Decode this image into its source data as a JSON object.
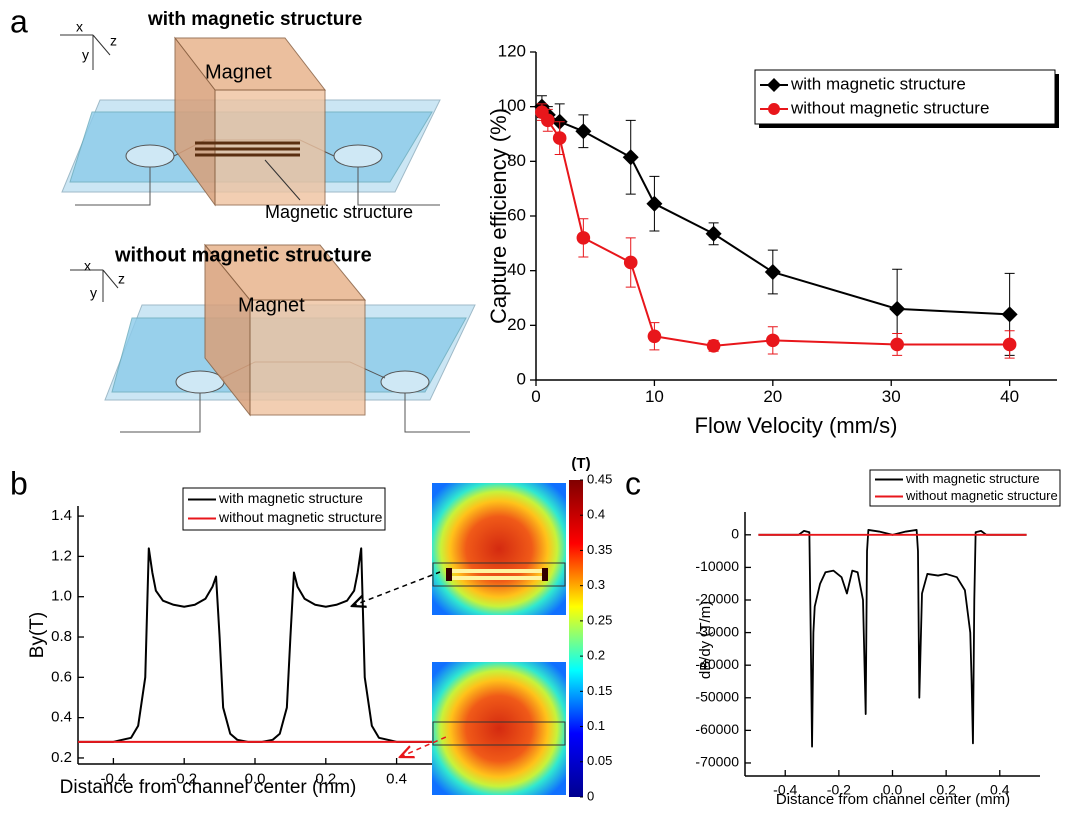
{
  "figure": {
    "panel_labels": [
      "a",
      "b",
      "c"
    ],
    "diagram": {
      "top_title": "with magnetic structure",
      "bottom_title": "without magnetic structure",
      "magnet_top": "Magnet",
      "magnet_bottom": "Magnet",
      "structure_label": "Magnetic structure",
      "axes_top": [
        "x",
        "y",
        "z"
      ],
      "axes_bottom": [
        "x",
        "y",
        "z"
      ]
    }
  },
  "chart_data": [
    {
      "type": "line",
      "xlabel": "Flow Velocity (mm/s)",
      "ylabel": "Capture efficiency (%)",
      "xlim": [
        0,
        44
      ],
      "ylim": [
        0,
        120
      ],
      "xticks": [
        0,
        10,
        20,
        30,
        40
      ],
      "yticks": [
        0,
        20,
        40,
        60,
        80,
        100,
        120
      ],
      "legend": "upper right",
      "series": [
        {
          "name": "with magnetic structure",
          "color": "#000000",
          "marker": "diamond",
          "x": [
            0.5,
            1,
            2,
            4,
            8,
            10,
            15,
            20,
            30.5,
            40
          ],
          "values": [
            100,
            97,
            94.5,
            91,
            81.5,
            64.5,
            53.5,
            39.5,
            26,
            24
          ],
          "errors": [
            4,
            3,
            6.5,
            6,
            13.5,
            10,
            4,
            8,
            14.5,
            15
          ]
        },
        {
          "name": "without magnetic structure",
          "color": "#e8161b",
          "marker": "circle",
          "x": [
            0.5,
            1,
            2,
            4,
            8,
            10,
            15,
            20,
            30.5,
            40
          ],
          "values": [
            98,
            95,
            88.5,
            52,
            43,
            16,
            12.5,
            14.5,
            13,
            13
          ],
          "errors": [
            3,
            4,
            6,
            7,
            9,
            5,
            2,
            5,
            4,
            5
          ]
        }
      ]
    },
    {
      "type": "line",
      "xlabel": "Distance from channel center (mm)",
      "ylabel": "By(T)",
      "xlim": [
        -0.5,
        0.5
      ],
      "ylim": [
        0.17,
        1.45
      ],
      "xticks": [
        -0.4,
        -0.2,
        {
          "value": 0,
          "label": "0.0"
        },
        0.2,
        0.4
      ],
      "yticks": [
        0.2,
        0.4,
        0.6,
        0.8,
        {
          "value": 1,
          "label": "1.0"
        },
        1.2,
        1.4
      ],
      "legend": "upper center",
      "series": [
        {
          "name": "with magnetic structure",
          "color": "#000000",
          "x": [
            -0.5,
            -0.4,
            -0.35,
            -0.33,
            -0.31,
            -0.3,
            -0.29,
            -0.28,
            -0.26,
            -0.23,
            -0.2,
            -0.17,
            -0.14,
            -0.12,
            -0.11,
            -0.1,
            -0.09,
            -0.07,
            -0.05,
            -0.02,
            0,
            0.02,
            0.05,
            0.07,
            0.09,
            0.1,
            0.11,
            0.12,
            0.14,
            0.17,
            0.2,
            0.23,
            0.26,
            0.28,
            0.29,
            0.3,
            0.31,
            0.33,
            0.35,
            0.4,
            0.5
          ],
          "values": [
            0.28,
            0.28,
            0.3,
            0.36,
            0.6,
            1.24,
            1.12,
            1.03,
            0.98,
            0.96,
            0.95,
            0.96,
            0.99,
            1.05,
            1.1,
            0.8,
            0.45,
            0.32,
            0.29,
            0.28,
            0.28,
            0.28,
            0.29,
            0.32,
            0.45,
            0.8,
            1.12,
            1.05,
            0.99,
            0.96,
            0.95,
            0.96,
            0.98,
            1.03,
            1.12,
            1.24,
            0.6,
            0.36,
            0.3,
            0.28,
            0.28
          ]
        },
        {
          "name": "without magnetic structure",
          "color": "#e8161b",
          "x": [
            -0.5,
            0.5
          ],
          "values": [
            0.28,
            0.28
          ]
        }
      ]
    },
    {
      "type": "colorbar",
      "title": "(T)",
      "ylim": [
        0,
        0.45
      ],
      "yticks": [
        0,
        0.05,
        0.1,
        0.15,
        0.2,
        0.25,
        0.3,
        0.35,
        0.4,
        0.45
      ],
      "colors": [
        "#00008f",
        "#0000ff",
        "#00ffff",
        "#ffff00",
        "#ff0000",
        "#800000"
      ]
    },
    {
      "type": "line",
      "xlabel": "Distance from channel center (mm)",
      "ylabel": "dB/dy (T/m)",
      "xlim": [
        -0.55,
        0.55
      ],
      "ylim": [
        -74000,
        7000
      ],
      "xticks": [
        -0.4,
        -0.2,
        {
          "value": 0,
          "label": "0.0"
        },
        0.2,
        0.4
      ],
      "yticks": [
        0,
        -10000,
        -20000,
        -30000,
        -40000,
        -50000,
        -60000,
        -70000
      ],
      "legend": "upper right",
      "series": [
        {
          "name": "with magnetic structure",
          "color": "#000000",
          "x": [
            -0.5,
            -0.35,
            -0.33,
            -0.31,
            -0.305,
            -0.3,
            -0.295,
            -0.29,
            -0.27,
            -0.25,
            -0.22,
            -0.19,
            -0.17,
            -0.15,
            -0.13,
            -0.11,
            -0.1,
            -0.095,
            -0.09,
            -0.05,
            0,
            0.05,
            0.09,
            0.095,
            0.1,
            0.11,
            0.13,
            0.17,
            0.2,
            0.24,
            0.27,
            0.29,
            0.295,
            0.3,
            0.305,
            0.31,
            0.33,
            0.35,
            0.5
          ],
          "values": [
            0,
            0,
            1200,
            800,
            -30000,
            -65000,
            -30000,
            -22000,
            -15000,
            -11500,
            -11000,
            -13000,
            -18000,
            -11000,
            -11500,
            -20000,
            -55000,
            -5000,
            1500,
            1000,
            0,
            1000,
            1500,
            -5000,
            -50000,
            -18000,
            -12000,
            -12500,
            -12000,
            -13000,
            -17000,
            -30000,
            -45000,
            -64000,
            -20000,
            800,
            1200,
            0,
            0
          ]
        },
        {
          "name": "without magnetic structure",
          "color": "#e8161b",
          "x": [
            -0.5,
            0.5
          ],
          "values": [
            0,
            0
          ]
        }
      ]
    }
  ]
}
